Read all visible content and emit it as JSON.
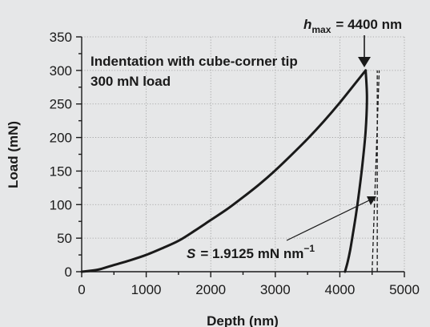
{
  "chart_data": {
    "type": "line",
    "xlabel": "Depth (nm)",
    "ylabel": "Load (mN)",
    "xlim": [
      0,
      5000
    ],
    "ylim": [
      0,
      350
    ],
    "xticks": [
      0,
      1000,
      2000,
      3000,
      4000,
      5000
    ],
    "yticks": [
      0,
      50,
      100,
      150,
      200,
      250,
      300,
      350
    ],
    "grid": "dotted",
    "series": [
      {
        "x": [
          0,
          250,
          500,
          750,
          1000,
          1250,
          1500,
          1750,
          2000,
          2250,
          2500,
          2750,
          3000,
          3250,
          3500,
          3750,
          4000,
          4250,
          4400
        ],
        "y": [
          0,
          3,
          10,
          17,
          25,
          35,
          46,
          61,
          77,
          93,
          111,
          130,
          151,
          174,
          198,
          224,
          252,
          282,
          300
        ]
      },
      {
        "x": [
          4400,
          4420,
          4400,
          4350,
          4300,
          4250,
          4200,
          4160,
          4120,
          4080
        ],
        "y": [
          300,
          260,
          210,
          160,
          120,
          85,
          55,
          32,
          14,
          0
        ]
      }
    ],
    "reference_lines": [
      {
        "x": [
          4500,
          4610
        ],
        "y": [
          0,
          300
        ]
      },
      {
        "x": [
          4580,
          4580
        ],
        "y": [
          0,
          300
        ]
      }
    ],
    "annotations": [
      {
        "text": "Indentation with cube-corner tip"
      },
      {
        "text": "300 mN load"
      },
      {
        "symbol": "h",
        "subscript": "max",
        "value": "= 4400 nm",
        "x": 4400,
        "y": 300
      },
      {
        "symbol": "S",
        "value": "= 1.9125 mN nm",
        "superscript": "−1",
        "x": 4460,
        "y": 115
      }
    ]
  }
}
